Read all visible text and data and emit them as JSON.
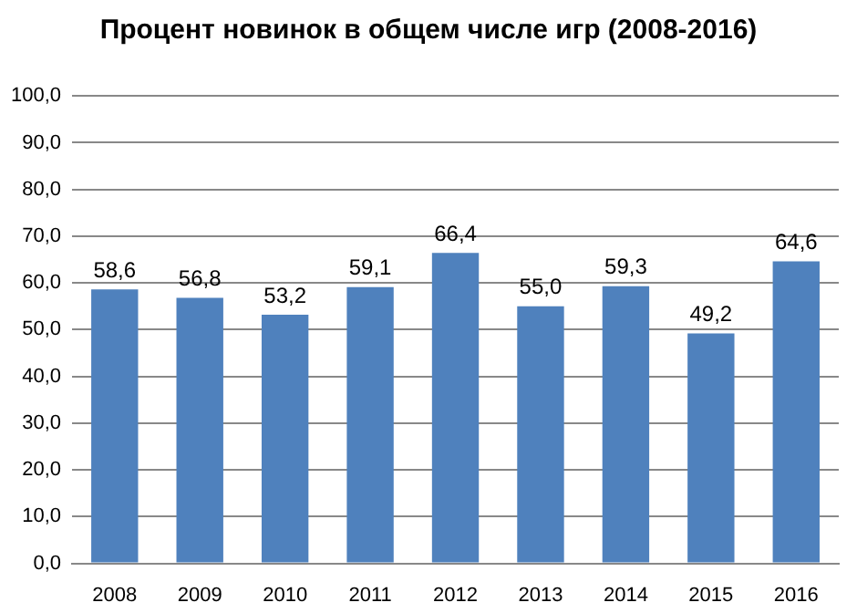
{
  "chart_data": {
    "type": "bar",
    "title": "Процент новинок в общем числе игр (2008-2016)",
    "categories": [
      "2008",
      "2009",
      "2010",
      "2011",
      "2012",
      "2013",
      "2014",
      "2015",
      "2016"
    ],
    "values": [
      58.6,
      56.8,
      53.2,
      59.1,
      66.4,
      55.0,
      59.3,
      49.2,
      64.6
    ],
    "value_labels": [
      "58,6",
      "56,8",
      "53,2",
      "59,1",
      "66,4",
      "55,0",
      "59,3",
      "49,2",
      "64,6"
    ],
    "color": "#4f81bd",
    "ylim": [
      0,
      100
    ],
    "yticks": [
      {
        "value": 0,
        "label": "0,0"
      },
      {
        "value": 10,
        "label": "10,0"
      },
      {
        "value": 20,
        "label": "20,0"
      },
      {
        "value": 30,
        "label": "30,0"
      },
      {
        "value": 40,
        "label": "40,0"
      },
      {
        "value": 50,
        "label": "50,0"
      },
      {
        "value": 60,
        "label": "60,0"
      },
      {
        "value": 70,
        "label": "70,0"
      },
      {
        "value": 80,
        "label": "80,0"
      },
      {
        "value": 90,
        "label": "90,0"
      },
      {
        "value": 100,
        "label": "100,0"
      }
    ],
    "grid": "y"
  }
}
